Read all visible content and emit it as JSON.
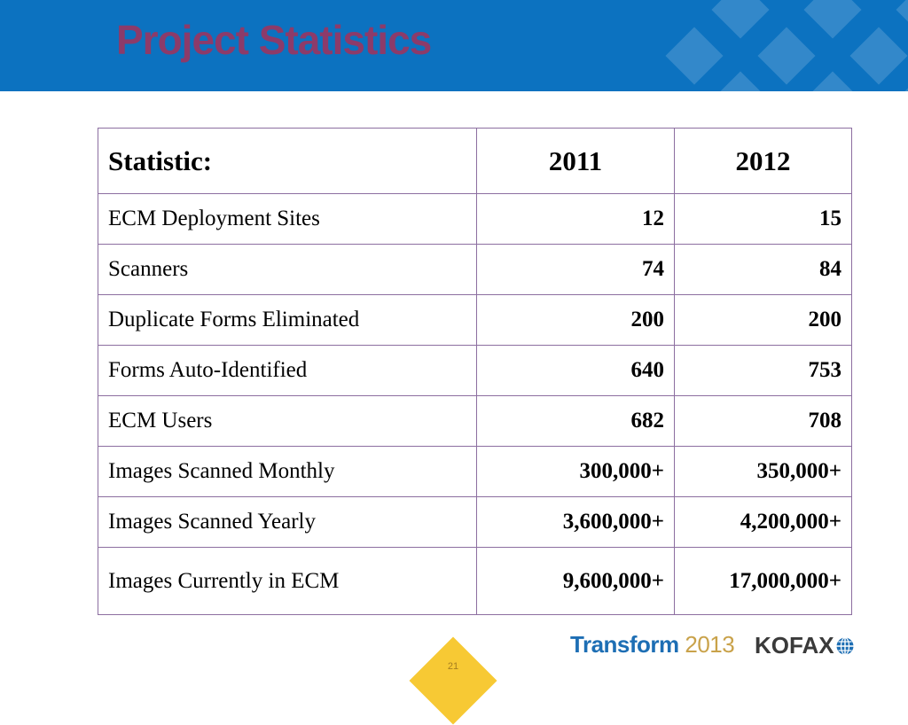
{
  "slide": {
    "title": "Project Statistics",
    "page_number": "21"
  },
  "table": {
    "headers": [
      "Statistic:",
      "2011",
      "2012"
    ],
    "rows": [
      {
        "label": "ECM Deployment Sites",
        "y2011": "12",
        "y2012": "15"
      },
      {
        "label": "Scanners",
        "y2011": "74",
        "y2012": "84"
      },
      {
        "label": "Duplicate Forms Eliminated",
        "y2011": "200",
        "y2012": "200"
      },
      {
        "label": "Forms Auto-Identified",
        "y2011": "640",
        "y2012": "753"
      },
      {
        "label": "ECM Users",
        "y2011": "682",
        "y2012": "708"
      },
      {
        "label": "Images Scanned Monthly",
        "y2011": "300,000+",
        "y2012": "350,000+"
      },
      {
        "label": "Images Scanned Yearly",
        "y2011": "3,600,000+",
        "y2012": "4,200,000+"
      },
      {
        "label": "Images Currently in ECM",
        "y2011": "9,600,000+",
        "y2012": "17,000,000+"
      }
    ]
  },
  "footer": {
    "transform_word": "Transform",
    "transform_year": "2013",
    "kofax": "KOFAX",
    "globe_icon": "globe-icon"
  },
  "colors": {
    "header_band": "#0c72c0",
    "title": "#8c3b6a",
    "table_border": "#8c6ea0",
    "page_badge": "#f7c934"
  }
}
